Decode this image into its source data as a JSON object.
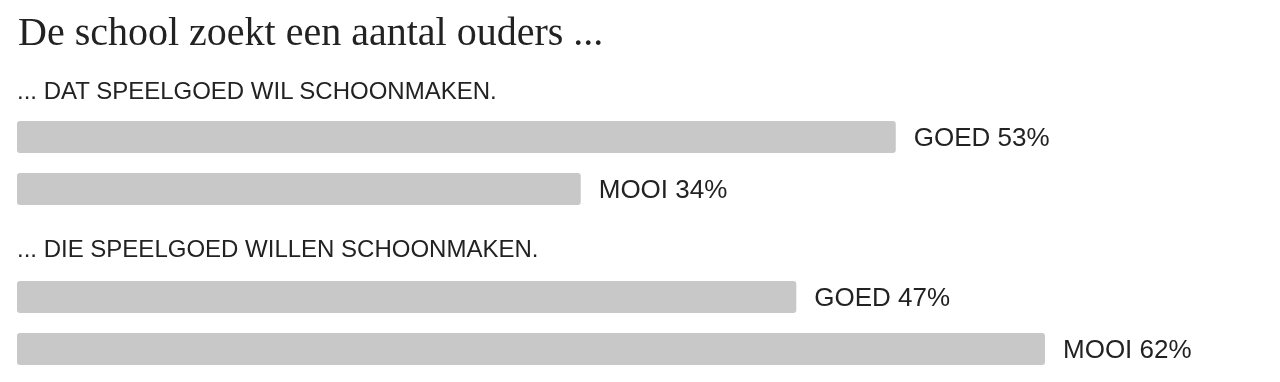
{
  "chart_data": {
    "type": "bar",
    "orientation": "horizontal",
    "title": "De school zoekt een aantal ouders ...",
    "annotations": [
      "... DAT SPEELGOED WIL SCHOONMAKEN.",
      "... DIE SPEELGOED WILLEN SCHOONMAKEN."
    ],
    "categories": [
      null,
      null,
      null,
      null
    ],
    "values": [
      53,
      34,
      47,
      62
    ],
    "value_labels": [
      "GOED 53%",
      "MOOI 34%",
      "GOED 47%",
      "MOOI 62%"
    ],
    "color": "#c8c8c8"
  }
}
